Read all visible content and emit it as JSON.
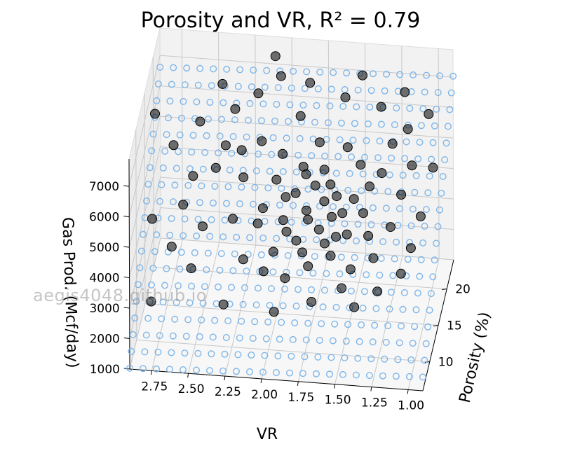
{
  "chart_data": {
    "type": "scatter",
    "title": "Porosity and VR, R² = 0.79",
    "xlabel": "VR",
    "ylabel": "Porosity (%)",
    "zlabel": "Gas Prod. (Mcf/day)",
    "xlim": [
      0.9,
      2.9
    ],
    "ylim": [
      6,
      24
    ],
    "zlim": [
      1000,
      7900
    ],
    "x_ticks": [
      "2.75",
      "2.50",
      "2.25",
      "2.00",
      "1.75",
      "1.50",
      "1.25",
      "1.00"
    ],
    "y_ticks": [
      "10",
      "15",
      "20"
    ],
    "z_ticks": [
      "1000",
      "2000",
      "3000",
      "4000",
      "5000",
      "6000",
      "7000"
    ],
    "grid": true,
    "colors": {
      "plane": "#7eb6ea",
      "points": "#000000",
      "pane": "#f2f2f2",
      "grid": "#c8c8c8"
    },
    "series": [
      {
        "kind": "fitted-plane",
        "plane_equation": {
          "intercept": -220,
          "vr_coef": -210,
          "porosity_coef": 310
        }
      },
      {
        "kind": "observations",
        "points": [
          [
            2.2,
            21.5,
            6600
          ],
          [
            2.35,
            20.8,
            6200
          ],
          [
            2.05,
            22.0,
            7100
          ],
          [
            1.9,
            20.5,
            6200
          ],
          [
            2.15,
            19.2,
            5600
          ],
          [
            2.45,
            18.0,
            4900
          ],
          [
            2.6,
            17.5,
            4700
          ],
          [
            2.0,
            18.5,
            5400
          ],
          [
            1.85,
            17.8,
            5200
          ],
          [
            1.75,
            18.8,
            5800
          ],
          [
            1.7,
            17.2,
            5300
          ],
          [
            1.65,
            16.5,
            5000
          ],
          [
            1.95,
            16.0,
            4600
          ],
          [
            2.1,
            15.5,
            4300
          ],
          [
            2.3,
            15.0,
            4000
          ],
          [
            2.5,
            14.5,
            3800
          ],
          [
            1.8,
            15.2,
            4400
          ],
          [
            1.6,
            15.8,
            4800
          ],
          [
            1.55,
            14.8,
            4500
          ],
          [
            1.7,
            14.0,
            4100
          ],
          [
            1.85,
            13.5,
            3800
          ],
          [
            2.0,
            13.0,
            3500
          ],
          [
            2.2,
            12.5,
            3300
          ],
          [
            1.5,
            13.2,
            4200
          ],
          [
            1.4,
            14.2,
            4700
          ],
          [
            1.35,
            12.8,
            4300
          ],
          [
            1.6,
            12.2,
            3700
          ],
          [
            1.75,
            11.8,
            3400
          ],
          [
            1.9,
            11.2,
            3100
          ],
          [
            1.45,
            11.0,
            3600
          ],
          [
            1.3,
            11.5,
            3900
          ],
          [
            1.2,
            13.0,
            4600
          ],
          [
            1.15,
            15.0,
            5200
          ],
          [
            1.3,
            16.5,
            5500
          ],
          [
            1.45,
            17.0,
            5600
          ],
          [
            1.55,
            18.0,
            5900
          ],
          [
            1.25,
            18.5,
            6000
          ],
          [
            1.1,
            17.0,
            5700
          ],
          [
            1.05,
            12.0,
            4200
          ],
          [
            2.55,
            12.0,
            3000
          ],
          [
            2.7,
            13.5,
            3300
          ],
          [
            2.65,
            16.0,
            4100
          ],
          [
            2.4,
            19.5,
            5300
          ],
          [
            2.25,
            17.0,
            4900
          ],
          [
            1.95,
            14.5,
            4200
          ],
          [
            1.65,
            13.0,
            3900
          ],
          [
            1.8,
            12.8,
            3600
          ],
          [
            2.05,
            11.5,
            3200
          ],
          [
            1.5,
            10.0,
            3200
          ],
          [
            1.7,
            9.5,
            2800
          ],
          [
            1.95,
            9.0,
            2500
          ],
          [
            2.3,
            9.5,
            2500
          ],
          [
            1.4,
            8.8,
            2900
          ],
          [
            1.25,
            9.5,
            3300
          ],
          [
            1.1,
            10.5,
            3700
          ],
          [
            2.8,
            10.0,
            2300
          ],
          [
            1.0,
            13.5,
            4900
          ],
          [
            1.15,
            19.0,
            6400
          ],
          [
            1.35,
            20.5,
            6700
          ],
          [
            1.6,
            21.0,
            6800
          ],
          [
            1.85,
            21.8,
            7000
          ],
          [
            2.1,
            23.0,
            7500
          ],
          [
            1.5,
            22.5,
            7200
          ],
          [
            2.45,
            22.0,
            6700
          ],
          [
            1.75,
            16.2,
            5000
          ],
          [
            1.88,
            15.8,
            4800
          ],
          [
            1.62,
            14.6,
            4400
          ],
          [
            1.78,
            14.4,
            4300
          ],
          [
            1.92,
            13.8,
            4000
          ],
          [
            1.58,
            13.6,
            4000
          ],
          [
            1.68,
            15.4,
            4700
          ],
          [
            1.82,
            16.8,
            5200
          ],
          [
            2.02,
            16.6,
            5000
          ],
          [
            2.12,
            14.2,
            4100
          ],
          [
            1.48,
            15.6,
            4800
          ],
          [
            1.38,
            16.2,
            5100
          ],
          [
            2.28,
            18.6,
            5400
          ],
          [
            2.58,
            20.0,
            5900
          ],
          [
            2.75,
            19.0,
            5300
          ],
          [
            2.85,
            15.0,
            3800
          ],
          [
            1.2,
            21.5,
            7000
          ],
          [
            1.02,
            20.0,
            6700
          ],
          [
            0.95,
            16.5,
            5800
          ],
          [
            2.9,
            21.0,
            5800
          ]
        ]
      }
    ]
  }
}
